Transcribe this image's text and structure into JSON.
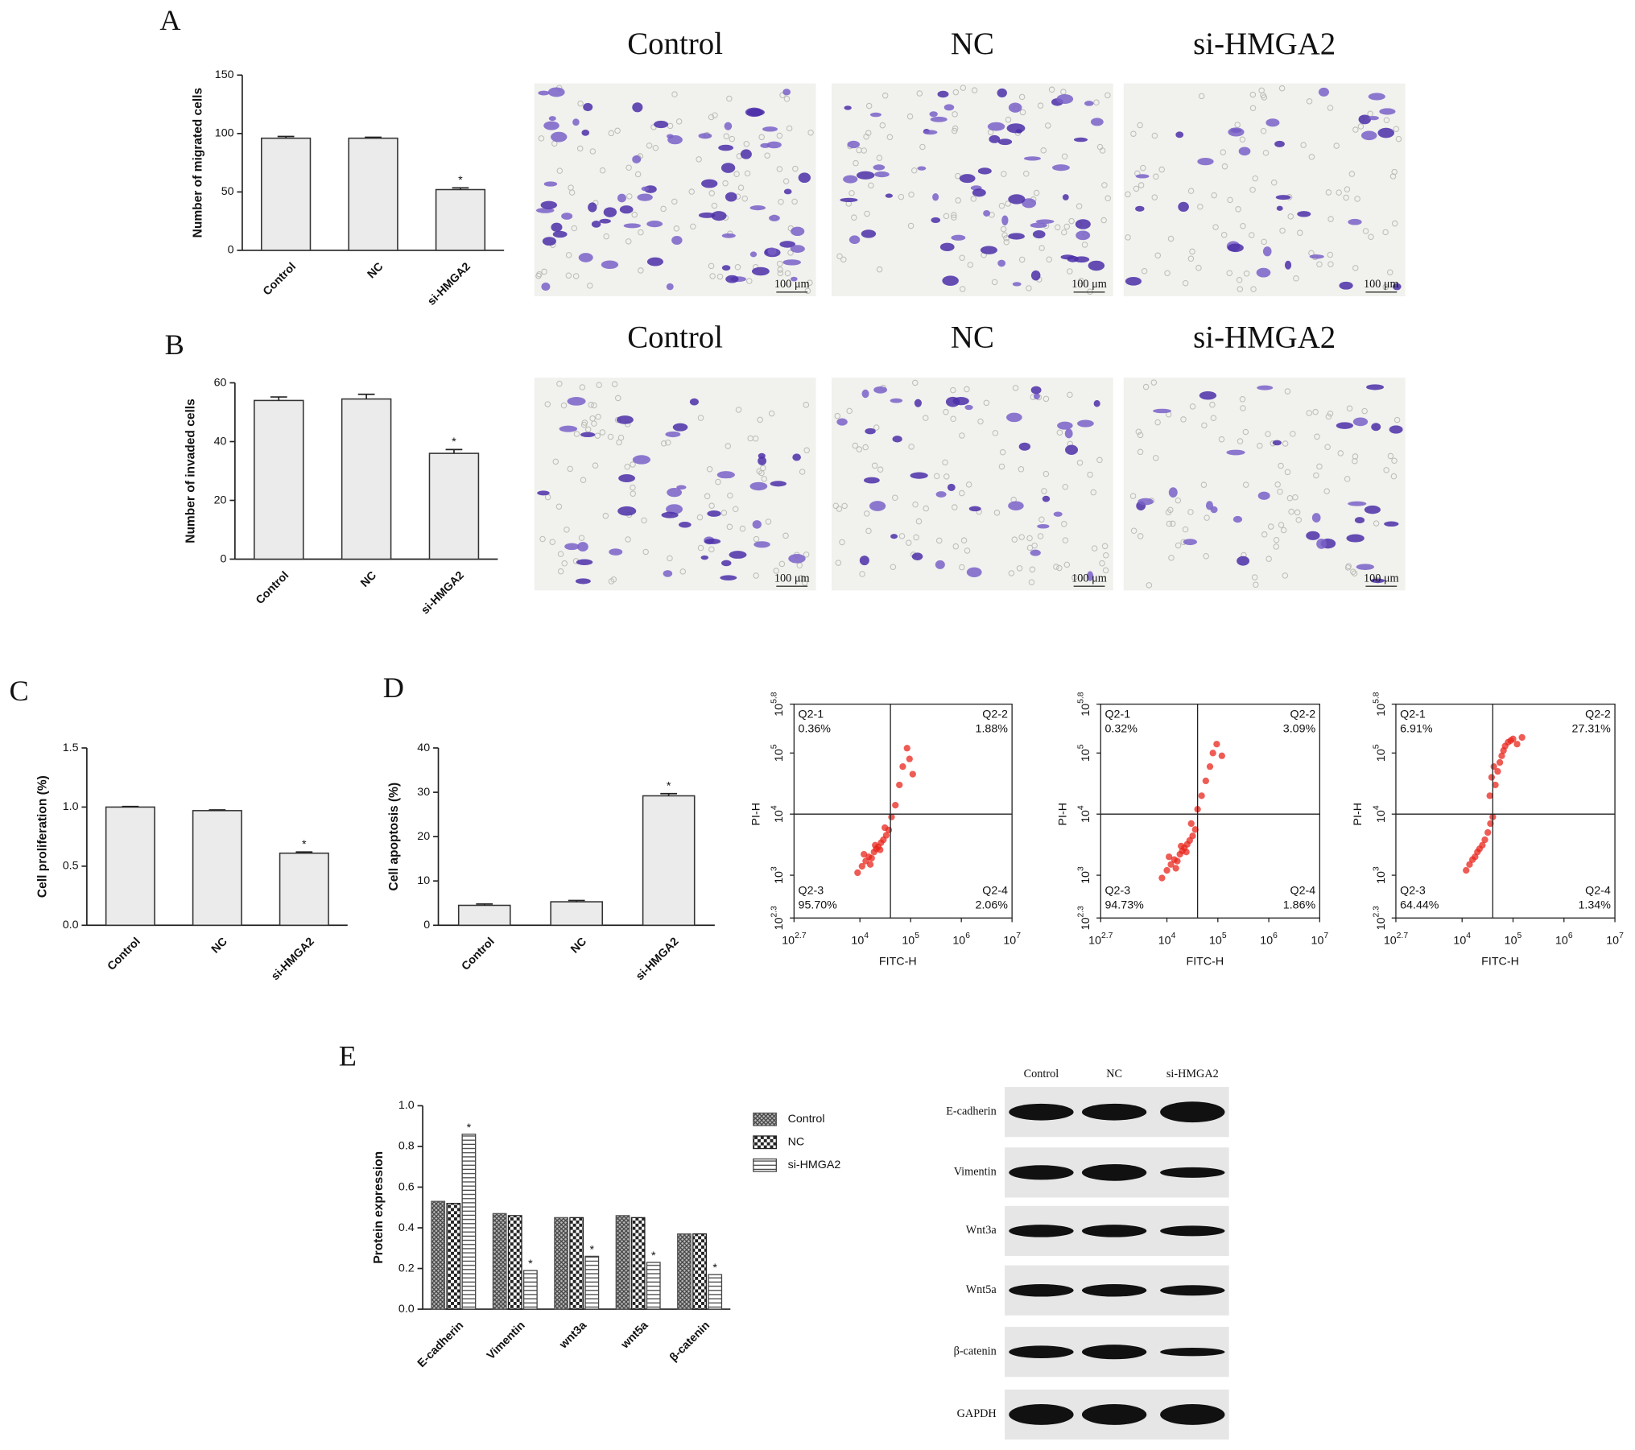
{
  "chart_data": [
    {
      "type": "bar",
      "panel": "A",
      "ylabel": "Number of migrated cells",
      "categories": [
        "Control",
        "NC",
        "si-HMGA2"
      ],
      "values": [
        96,
        96,
        52
      ],
      "errors": [
        1.5,
        0.8,
        1.5
      ],
      "significance": [
        null,
        null,
        "*"
      ],
      "ylim": [
        0,
        150
      ],
      "yticks": [
        0,
        50,
        100,
        150
      ],
      "color": "#ebebeb"
    },
    {
      "type": "bar",
      "panel": "B",
      "ylabel": "Number of invaded cells",
      "categories": [
        "Control",
        "NC",
        "si-HMGA2"
      ],
      "values": [
        54,
        54.5,
        36
      ],
      "errors": [
        1.2,
        1.6,
        1.3
      ],
      "significance": [
        null,
        null,
        "*"
      ],
      "ylim": [
        0,
        60
      ],
      "yticks": [
        0,
        20,
        40,
        60
      ],
      "color": "#ebebeb"
    },
    {
      "type": "bar",
      "panel": "C",
      "ylabel": "Cell proliferation (%)",
      "categories": [
        "Control",
        "NC",
        "si-HMGA2"
      ],
      "values": [
        1.0,
        0.97,
        0.61
      ],
      "errors": [
        0.005,
        0.006,
        0.01
      ],
      "significance": [
        null,
        null,
        "*"
      ],
      "ylim": [
        0,
        1.5
      ],
      "yticks": [
        {
          "value": 0,
          "label": "0.0"
        },
        0.5,
        {
          "value": 1,
          "label": "1.0"
        },
        1.5
      ],
      "color": "#ebebeb"
    },
    {
      "type": "bar",
      "panel": "D",
      "ylabel": "Cell apoptosis (%)",
      "categories": [
        "Control",
        "NC",
        "si-HMGA2"
      ],
      "values": [
        4.5,
        5.3,
        29.2
      ],
      "errors": [
        0.3,
        0.3,
        0.5
      ],
      "significance": [
        null,
        null,
        "*"
      ],
      "ylim": [
        0,
        40
      ],
      "yticks": [
        0,
        10,
        20,
        30,
        40
      ],
      "color": "#ebebeb"
    },
    {
      "type": "flow",
      "xlabel": "FITC-H",
      "ylabel": "PI-H",
      "log": true,
      "color": "#e8261c",
      "xlim": [
        501.187,
        10000000
      ],
      "ylim": [
        199.526,
        630957
      ],
      "xticks": [
        {
          "value": 501.187,
          "label": "10^2.7"
        },
        {
          "value": 10000,
          "label": "10^4"
        },
        {
          "value": 100000,
          "label": "10^5"
        },
        {
          "value": 1000000,
          "label": "10^6"
        },
        {
          "value": 10000000,
          "label": "10^7"
        }
      ],
      "yticks": [
        {
          "value": 199.526,
          "label": "10^2.3"
        },
        {
          "value": 1000,
          "label": "10^3"
        },
        {
          "value": 10000,
          "label": "10^4"
        },
        {
          "value": 100000,
          "label": "10^5"
        },
        {
          "value": 630957,
          "label": "10^5.8"
        }
      ],
      "gate": {
        "x": 40000,
        "y": 10000
      },
      "quadrants": {
        "names": [
          "Q2-1",
          "Q2-2",
          "Q2-3",
          "Q2-4"
        ],
        "values": [
          0.36,
          1.88,
          95.7,
          2.06
        ],
        "value_labels": [
          "0.36%",
          "1.88%",
          "95.70%",
          "2.06%"
        ]
      },
      "x": [
        9000,
        11000,
        13000,
        15000,
        17000,
        19000,
        21000,
        23000,
        26000,
        29000,
        33000,
        37000,
        12000,
        16000,
        20000,
        25000,
        31000,
        42000,
        50000,
        60000,
        70000,
        85000,
        95000,
        110000
      ],
      "y": [
        1100,
        1400,
        1700,
        2000,
        1900,
        2400,
        2700,
        2900,
        3400,
        3800,
        4500,
        5500,
        2200,
        1500,
        3100,
        2600,
        6000,
        9000,
        14000,
        30000,
        60000,
        120000,
        80000,
        45000
      ]
    },
    {
      "type": "flow",
      "xlabel": "FITC-H",
      "ylabel": "PI-H",
      "log": true,
      "color": "#e8261c",
      "xlim": [
        501.187,
        10000000
      ],
      "ylim": [
        199.526,
        630957
      ],
      "xticks": [
        {
          "value": 501.187,
          "label": "10^2.7"
        },
        {
          "value": 10000,
          "label": "10^4"
        },
        {
          "value": 100000,
          "label": "10^5"
        },
        {
          "value": 1000000,
          "label": "10^6"
        },
        {
          "value": 10000000,
          "label": "10^7"
        }
      ],
      "yticks": [
        {
          "value": 199.526,
          "label": "10^2.3"
        },
        {
          "value": 1000,
          "label": "10^3"
        },
        {
          "value": 10000,
          "label": "10^4"
        },
        {
          "value": 100000,
          "label": "10^5"
        },
        {
          "value": 630957,
          "label": "10^5.8"
        }
      ],
      "gate": {
        "x": 40000,
        "y": 10000
      },
      "quadrants": {
        "names": [
          "Q2-1",
          "Q2-2",
          "Q2-3",
          "Q2-4"
        ],
        "values": [
          0.32,
          3.09,
          94.73,
          1.86
        ],
        "value_labels": [
          "0.32%",
          "3.09%",
          "94.73%",
          "1.86%"
        ]
      },
      "x": [
        8000,
        10000,
        12000,
        14000,
        16000,
        18000,
        20000,
        22000,
        25000,
        28000,
        32000,
        36000,
        11000,
        15000,
        19000,
        24000,
        30000,
        40000,
        48000,
        58000,
        70000,
        80000,
        95000,
        120000
      ],
      "y": [
        900,
        1200,
        1500,
        1800,
        1700,
        2200,
        2500,
        2800,
        3200,
        3700,
        4400,
        5600,
        2000,
        1300,
        3000,
        2400,
        7000,
        12000,
        20000,
        35000,
        60000,
        100000,
        140000,
        90000
      ]
    },
    {
      "type": "flow",
      "xlabel": "FITC-H",
      "ylabel": "PI-H",
      "log": true,
      "color": "#e8261c",
      "xlim": [
        501.187,
        10000000
      ],
      "ylim": [
        199.526,
        630957
      ],
      "xticks": [
        {
          "value": 501.187,
          "label": "10^2.7"
        },
        {
          "value": 10000,
          "label": "10^4"
        },
        {
          "value": 100000,
          "label": "10^5"
        },
        {
          "value": 1000000,
          "label": "10^6"
        },
        {
          "value": 10000000,
          "label": "10^7"
        }
      ],
      "yticks": [
        {
          "value": 199.526,
          "label": "10^2.3"
        },
        {
          "value": 1000,
          "label": "10^3"
        },
        {
          "value": 10000,
          "label": "10^4"
        },
        {
          "value": 100000,
          "label": "10^5"
        },
        {
          "value": 630957,
          "label": "10^5.8"
        }
      ],
      "gate": {
        "x": 40000,
        "y": 10000
      },
      "quadrants": {
        "names": [
          "Q2-1",
          "Q2-2",
          "Q2-3",
          "Q2-4"
        ],
        "values": [
          6.91,
          27.31,
          64.44,
          1.34
        ],
        "value_labels": [
          "6.91%",
          "27.31%",
          "64.44%",
          "1.34%"
        ]
      },
      "x": [
        12000,
        14000,
        16000,
        18000,
        20000,
        22000,
        25000,
        28000,
        32000,
        36000,
        40000,
        35000,
        45000,
        50000,
        55000,
        60000,
        65000,
        70000,
        80000,
        90000,
        100000,
        120000,
        150000,
        42000,
        38000
      ],
      "y": [
        1200,
        1500,
        1800,
        2000,
        2400,
        2700,
        3100,
        3800,
        5000,
        7000,
        9000,
        20000,
        30000,
        50000,
        70000,
        90000,
        110000,
        130000,
        150000,
        160000,
        170000,
        140000,
        180000,
        60000,
        40000
      ]
    },
    {
      "type": "grouped_bar",
      "panel": "E",
      "ylabel": "Protein expression",
      "categories": [
        "E-cadherin",
        "Vimentin",
        "wnt3a",
        "wnt5a",
        "β-catenin"
      ],
      "series": [
        {
          "name": "Control",
          "pattern": "crosshatch",
          "color": "#555555",
          "values": [
            0.53,
            0.47,
            0.45,
            0.46,
            0.37
          ]
        },
        {
          "name": "NC",
          "pattern": "checker",
          "color": "#222222",
          "values": [
            0.52,
            0.46,
            0.45,
            0.45,
            0.37
          ]
        },
        {
          "name": "si-HMGA2",
          "pattern": "hstripe",
          "color": "#444444",
          "values": [
            0.86,
            0.19,
            0.26,
            0.23,
            0.17
          ],
          "significance": [
            "*",
            "*",
            "*",
            "*",
            "*"
          ]
        }
      ],
      "ylim": [
        0,
        1
      ],
      "yticks": [
        {
          "value": 0,
          "label": "0.0"
        },
        0.2,
        0.4,
        0.6,
        0.8,
        {
          "value": 1,
          "label": "1.0"
        }
      ]
    }
  ],
  "micrographs": {
    "labels": [
      "Control",
      "NC",
      "si-HMGA2"
    ],
    "scale_bar": "100 μm"
  },
  "western_blot": {
    "lanes": [
      "Control",
      "NC",
      "si-HMGA2"
    ],
    "rows": [
      "E-cadherin",
      "Vimentin",
      "Wnt3a",
      "Wnt5a",
      "β-catenin",
      "GAPDH"
    ]
  }
}
